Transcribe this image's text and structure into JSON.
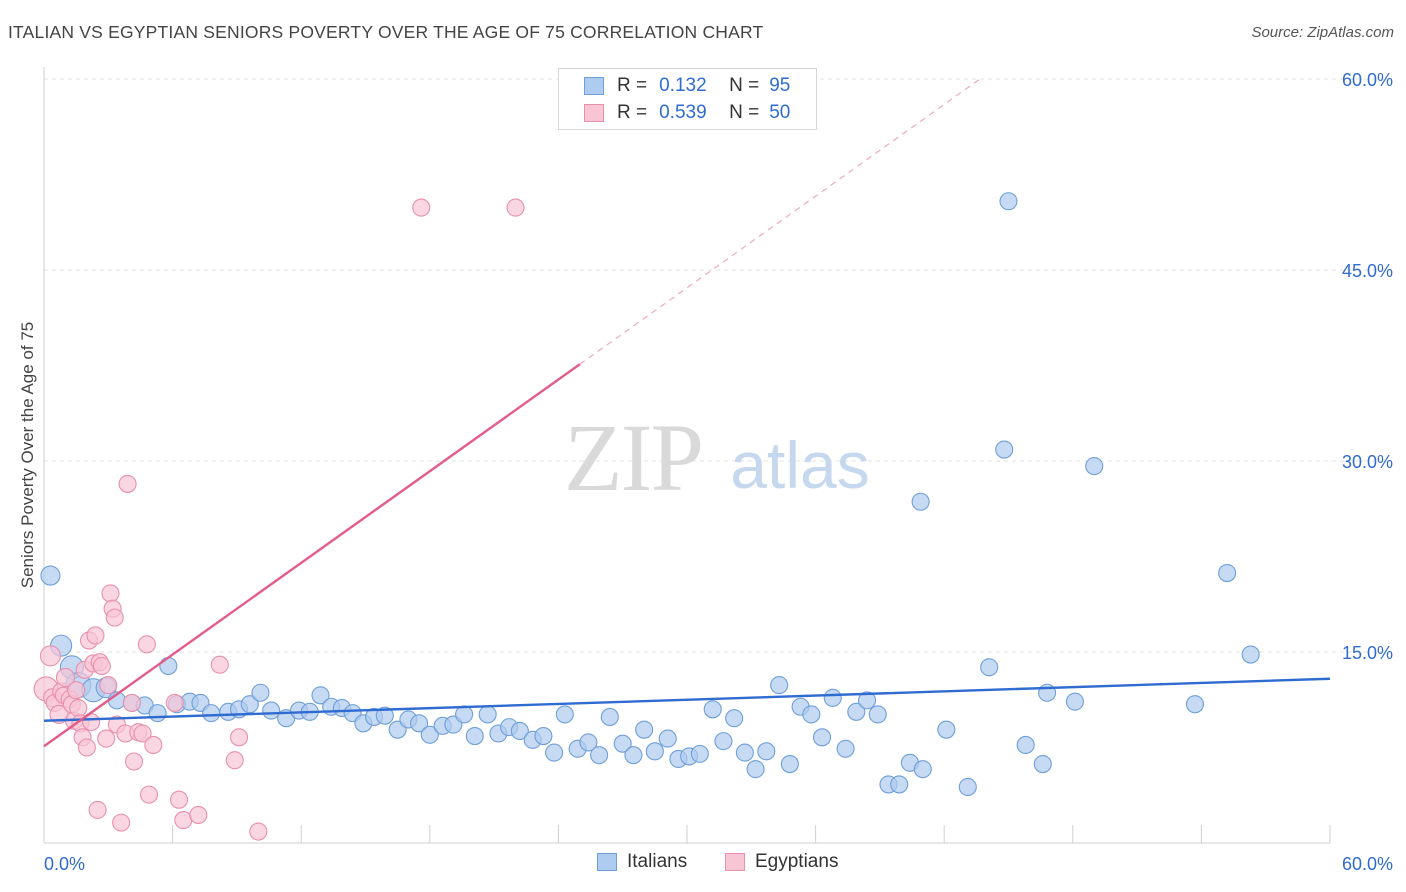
{
  "title": "ITALIAN VS EGYPTIAN SENIORS POVERTY OVER THE AGE OF 75 CORRELATION CHART",
  "source": "Source: ZipAtlas.com",
  "watermark": {
    "zip": "ZIP",
    "atlas": "atlas"
  },
  "legend_top": {
    "rows": [
      {
        "r_label": "R =",
        "r_value": "0.132",
        "n_label": "N =",
        "n_value": "95",
        "color": "#aecbf0",
        "border": "#6f9fd8"
      },
      {
        "r_label": "R =",
        "r_value": "0.539",
        "n_label": "N =",
        "n_value": "50",
        "color": "#f8c5d5",
        "border": "#e890ac"
      }
    ]
  },
  "legend_bottom": [
    {
      "label": "Italians",
      "color": "#aecbf0",
      "border": "#6f9fd8"
    },
    {
      "label": "Egyptians",
      "color": "#f8c5d5",
      "border": "#e890ac"
    }
  ],
  "chart_data": {
    "type": "scatter",
    "title": "ITALIAN VS EGYPTIAN SENIORS POVERTY OVER THE AGE OF 75 CORRELATION CHART",
    "xlabel": "",
    "ylabel": "Seniors Poverty Over the Age of 75",
    "xlim": [
      0,
      60
    ],
    "ylim": [
      0,
      60
    ],
    "x_tick_labels": [
      "0.0%",
      "60.0%"
    ],
    "y_tick_labels": [
      "15.0%",
      "30.0%",
      "45.0%",
      "60.0%"
    ],
    "y_ticks": [
      15,
      30,
      45,
      60
    ],
    "grid": true,
    "legend_position": "top-center",
    "series": [
      {
        "name": "Italians",
        "color": "#6f9fd8",
        "fill": "#aecbf0",
        "trend": {
          "x": [
            0,
            60
          ],
          "y": [
            9.6,
            12.9
          ],
          "color": "#2f6bd1"
        },
        "points": [
          [
            0.3,
            21.0
          ],
          [
            0.8,
            15.5
          ],
          [
            1.3,
            13.8
          ],
          [
            1.6,
            12.4
          ],
          [
            2.3,
            12.0
          ],
          [
            2.9,
            12.2
          ],
          [
            3.4,
            11.2
          ],
          [
            4.1,
            11.0
          ],
          [
            4.7,
            10.8
          ],
          [
            5.3,
            10.2
          ],
          [
            5.8,
            13.9
          ],
          [
            6.2,
            10.9
          ],
          [
            6.8,
            11.1
          ],
          [
            7.3,
            11.0
          ],
          [
            7.8,
            10.2
          ],
          [
            8.6,
            10.3
          ],
          [
            9.1,
            10.5
          ],
          [
            9.6,
            10.9
          ],
          [
            10.1,
            11.8
          ],
          [
            10.6,
            10.4
          ],
          [
            11.3,
            9.8
          ],
          [
            11.9,
            10.4
          ],
          [
            12.4,
            10.3
          ],
          [
            12.9,
            11.6
          ],
          [
            13.4,
            10.7
          ],
          [
            13.9,
            10.6
          ],
          [
            14.4,
            10.2
          ],
          [
            14.9,
            9.4
          ],
          [
            15.4,
            9.9
          ],
          [
            15.9,
            10.0
          ],
          [
            16.5,
            8.9
          ],
          [
            17.0,
            9.7
          ],
          [
            17.5,
            9.4
          ],
          [
            18.0,
            8.5
          ],
          [
            18.6,
            9.2
          ],
          [
            19.1,
            9.3
          ],
          [
            19.6,
            10.1
          ],
          [
            20.1,
            8.4
          ],
          [
            20.7,
            10.1
          ],
          [
            21.2,
            8.6
          ],
          [
            21.7,
            9.1
          ],
          [
            22.2,
            8.8
          ],
          [
            22.8,
            8.1
          ],
          [
            23.3,
            8.4
          ],
          [
            23.8,
            7.1
          ],
          [
            24.3,
            10.1
          ],
          [
            24.9,
            7.4
          ],
          [
            25.4,
            7.9
          ],
          [
            25.9,
            6.9
          ],
          [
            26.4,
            9.9
          ],
          [
            27.0,
            7.8
          ],
          [
            27.5,
            6.9
          ],
          [
            28.0,
            8.9
          ],
          [
            28.5,
            7.2
          ],
          [
            29.1,
            8.2
          ],
          [
            29.6,
            6.6
          ],
          [
            30.1,
            6.8
          ],
          [
            30.6,
            7.0
          ],
          [
            31.2,
            10.5
          ],
          [
            31.7,
            8.0
          ],
          [
            32.2,
            9.8
          ],
          [
            32.7,
            7.1
          ],
          [
            33.2,
            5.8
          ],
          [
            33.7,
            7.2
          ],
          [
            34.3,
            12.4
          ],
          [
            34.8,
            6.2
          ],
          [
            35.3,
            10.7
          ],
          [
            35.8,
            10.1
          ],
          [
            36.3,
            8.3
          ],
          [
            36.8,
            11.4
          ],
          [
            37.4,
            7.4
          ],
          [
            37.9,
            10.3
          ],
          [
            38.4,
            11.2
          ],
          [
            38.9,
            10.1
          ],
          [
            39.4,
            4.6
          ],
          [
            39.9,
            4.6
          ],
          [
            40.4,
            6.3
          ],
          [
            40.9,
            26.8
          ],
          [
            41.0,
            5.8
          ],
          [
            42.1,
            8.9
          ],
          [
            43.1,
            4.4
          ],
          [
            44.1,
            13.8
          ],
          [
            44.8,
            30.9
          ],
          [
            45.0,
            50.4
          ],
          [
            45.8,
            7.7
          ],
          [
            46.6,
            6.2
          ],
          [
            46.8,
            11.8
          ],
          [
            48.1,
            11.1
          ],
          [
            49.0,
            29.6
          ],
          [
            53.7,
            10.9
          ],
          [
            55.2,
            21.2
          ],
          [
            56.3,
            14.8
          ]
        ]
      },
      {
        "name": "Egyptians",
        "color": "#e890ac",
        "fill": "#f8c5d5",
        "trend": {
          "x": [
            0,
            25
          ],
          "y": [
            7.6,
            37.6
          ],
          "dashed_to": [
            43,
            60
          ],
          "color": "#e45d88"
        },
        "points": [
          [
            0.1,
            12.1
          ],
          [
            0.3,
            14.7
          ],
          [
            0.4,
            11.4
          ],
          [
            0.5,
            11.0
          ],
          [
            0.7,
            10.1
          ],
          [
            0.8,
            11.9
          ],
          [
            0.9,
            11.6
          ],
          [
            1.0,
            13.0
          ],
          [
            1.2,
            11.3
          ],
          [
            1.3,
            10.9
          ],
          [
            1.4,
            9.6
          ],
          [
            1.5,
            12.0
          ],
          [
            1.6,
            10.6
          ],
          [
            1.7,
            9.4
          ],
          [
            1.8,
            8.3
          ],
          [
            1.9,
            13.6
          ],
          [
            2.0,
            7.5
          ],
          [
            2.1,
            15.9
          ],
          [
            2.2,
            9.5
          ],
          [
            2.3,
            14.1
          ],
          [
            2.4,
            16.3
          ],
          [
            2.5,
            2.6
          ],
          [
            2.6,
            14.2
          ],
          [
            2.7,
            13.9
          ],
          [
            2.9,
            8.2
          ],
          [
            3.0,
            12.4
          ],
          [
            3.1,
            19.6
          ],
          [
            3.2,
            18.4
          ],
          [
            3.3,
            17.7
          ],
          [
            3.4,
            9.3
          ],
          [
            3.6,
            1.6
          ],
          [
            3.8,
            8.6
          ],
          [
            3.9,
            28.2
          ],
          [
            4.1,
            11.0
          ],
          [
            4.2,
            6.4
          ],
          [
            4.4,
            8.7
          ],
          [
            4.6,
            8.6
          ],
          [
            4.8,
            15.6
          ],
          [
            4.9,
            3.8
          ],
          [
            5.1,
            7.7
          ],
          [
            6.1,
            11.0
          ],
          [
            6.3,
            3.4
          ],
          [
            6.5,
            1.8
          ],
          [
            7.2,
            2.2
          ],
          [
            8.2,
            14.0
          ],
          [
            8.9,
            6.5
          ],
          [
            9.1,
            8.3
          ],
          [
            10.0,
            0.9
          ],
          [
            17.6,
            49.9
          ],
          [
            22.0,
            49.9
          ]
        ]
      }
    ]
  }
}
